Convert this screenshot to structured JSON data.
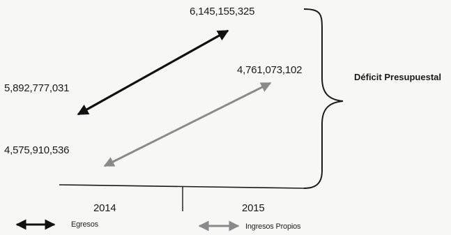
{
  "values": {
    "egresos_2014": "5,892,777,031",
    "egresos_2015": "6,145,155,325",
    "ingresos_2014": "4,575,910,536",
    "ingresos_2015": "4,761,073,102"
  },
  "years": [
    "2014",
    "2015"
  ],
  "bracket_label": "Déficit Presupuestal",
  "legend": {
    "egresos": "Egresos",
    "ingresos": "Ingresos Propios"
  },
  "colors": {
    "egresos": "#111111",
    "ingresos": "#8a8a8a",
    "axis": "#1a1a1a"
  }
}
